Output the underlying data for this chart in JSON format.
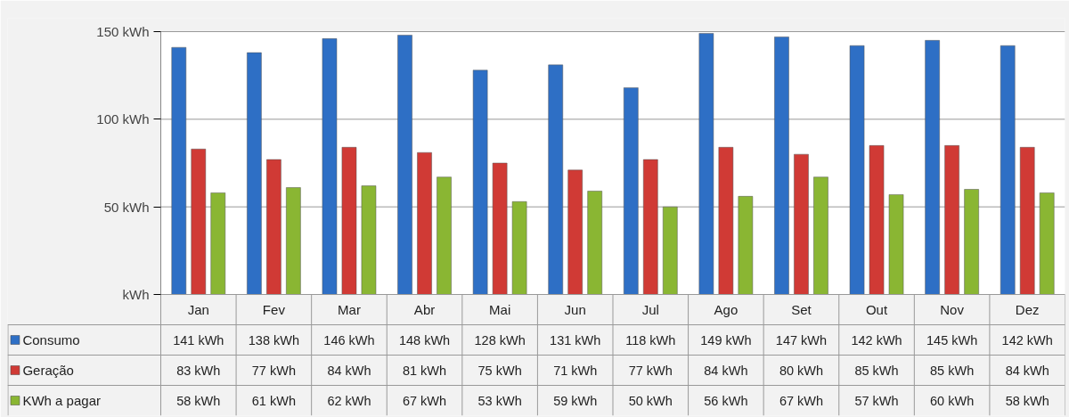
{
  "chart_data": {
    "type": "bar",
    "categories": [
      "Jan",
      "Fev",
      "Mar",
      "Abr",
      "Mai",
      "Jun",
      "Jul",
      "Ago",
      "Set",
      "Out",
      "Nov",
      "Dez"
    ],
    "series": [
      {
        "name": "Consumo",
        "color": "#2e6fc5",
        "values": [
          141,
          138,
          146,
          148,
          128,
          131,
          118,
          149,
          147,
          142,
          145,
          142
        ],
        "value_labels": [
          "141 kWh",
          "138 kWh",
          "146 kWh",
          "148 kWh",
          "128 kWh",
          "131 kWh",
          "118 kWh",
          "149 kWh",
          "147 kWh",
          "142 kWh",
          "145 kWh",
          "142 kWh"
        ]
      },
      {
        "name": "Geração",
        "color": "#d03a35",
        "values": [
          83,
          77,
          84,
          81,
          75,
          71,
          77,
          84,
          80,
          85,
          85,
          84
        ],
        "value_labels": [
          "83 kWh",
          "77 kWh",
          "84 kWh",
          "81 kWh",
          "75 kWh",
          "71 kWh",
          "77 kWh",
          "84 kWh",
          "80 kWh",
          "85 kWh",
          "85 kWh",
          "84 kWh"
        ]
      },
      {
        "name": "KWh a pagar",
        "color": "#8ab633",
        "values": [
          58,
          61,
          62,
          67,
          53,
          59,
          50,
          56,
          67,
          57,
          60,
          58
        ],
        "value_labels": [
          "58 kWh",
          "61 kWh",
          "62 kWh",
          "67 kWh",
          "53 kWh",
          "59 kWh",
          "50 kWh",
          "56 kWh",
          "67 kWh",
          "57 kWh",
          "60 kWh",
          "58 kWh"
        ]
      }
    ],
    "ylim": [
      0,
      150
    ],
    "yticks": [
      {
        "value": 0,
        "label": "kWh"
      },
      {
        "value": 50,
        "label": "50 kWh"
      },
      {
        "value": 100,
        "label": "100 kWh"
      },
      {
        "value": 150,
        "label": "150 kWh"
      }
    ],
    "grid": "y",
    "legend": "bottom left"
  }
}
